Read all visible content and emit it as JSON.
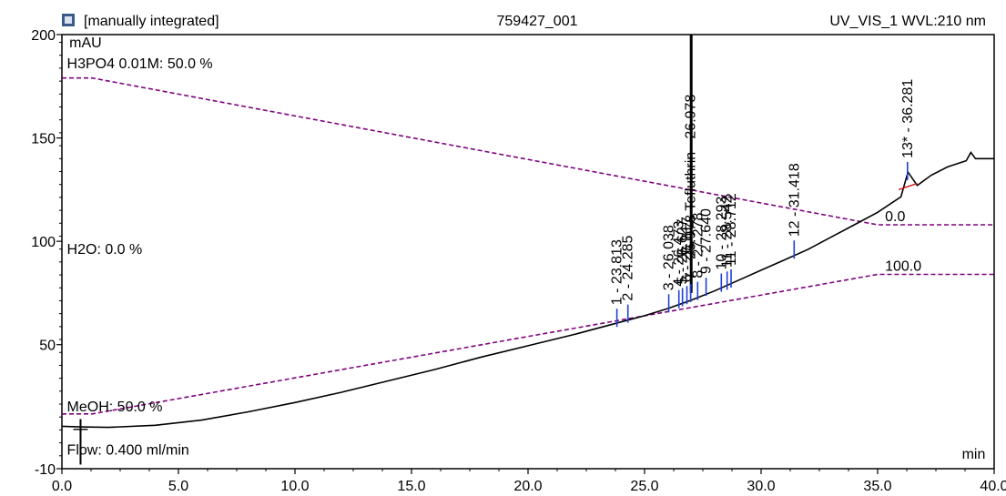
{
  "header": {
    "integration_label": "[manually integrated]",
    "sample_name": "759427_001",
    "channel": "UV_VIS_1 WVL:210 nm"
  },
  "chart_data": {
    "type": "line",
    "xlabel": "min",
    "ylabel": "mAU",
    "xlim": [
      0,
      40
    ],
    "ylim": [
      -10,
      200
    ],
    "x_ticks": [
      {
        "value": 0,
        "label": "0.0"
      },
      {
        "value": 5,
        "label": "5.0"
      },
      {
        "value": 10,
        "label": "10.0"
      },
      {
        "value": 15,
        "label": "15.0"
      },
      {
        "value": 20,
        "label": "20.0"
      },
      {
        "value": 25,
        "label": "25.0"
      },
      {
        "value": 30,
        "label": "30.0"
      },
      {
        "value": 35,
        "label": "35.0"
      },
      {
        "value": 40,
        "label": "40.0"
      }
    ],
    "y_ticks": [
      {
        "value": -10,
        "label": "-10"
      },
      {
        "value": 50,
        "label": "50"
      },
      {
        "value": 100,
        "label": "100"
      },
      {
        "value": 150,
        "label": "150"
      },
      {
        "value": 200,
        "label": "200"
      }
    ],
    "series": [
      {
        "role": "chromatogram",
        "color": "#000000",
        "points": [
          [
            0,
            10.5
          ],
          [
            0.8,
            10.2
          ],
          [
            2,
            10.0
          ],
          [
            4,
            11.0
          ],
          [
            6,
            13.5
          ],
          [
            8,
            17.5
          ],
          [
            10,
            22.0
          ],
          [
            12,
            27.0
          ],
          [
            14,
            32.5
          ],
          [
            16,
            38.0
          ],
          [
            18,
            44.0
          ],
          [
            20,
            49.5
          ],
          [
            22,
            55.0
          ],
          [
            24,
            61.0
          ],
          [
            25,
            64.0
          ],
          [
            26,
            67.5
          ],
          [
            27,
            71.5
          ],
          [
            28,
            76.0
          ],
          [
            29,
            81.0
          ],
          [
            30,
            86.0
          ],
          [
            31,
            91.0
          ],
          [
            32,
            96.0
          ],
          [
            33,
            102.0
          ],
          [
            34,
            108.0
          ],
          [
            35,
            114.0
          ],
          [
            36,
            121.5
          ],
          [
            36.3,
            133.5
          ],
          [
            36.7,
            127.0
          ],
          [
            37.3,
            132.0
          ],
          [
            38,
            136.0
          ],
          [
            38.8,
            139.0
          ],
          [
            39,
            143.0
          ],
          [
            39.2,
            140.0
          ],
          [
            40,
            140.0
          ]
        ]
      },
      {
        "role": "gradient-h3po4",
        "color": "#800080",
        "dashed": true,
        "points": [
          [
            0,
            179
          ],
          [
            1.3,
            179
          ],
          [
            35,
            108
          ],
          [
            40,
            108
          ]
        ]
      },
      {
        "role": "gradient-meoh",
        "color": "#800080",
        "dashed": true,
        "points": [
          [
            0,
            16.5
          ],
          [
            1.3,
            16.5
          ],
          [
            35,
            84
          ],
          [
            40,
            84
          ]
        ]
      }
    ],
    "spike": {
      "x": 27.0,
      "y_top": 200
    },
    "injection_marker_x": 0.8,
    "peaks": [
      {
        "label": "1 - 23.813",
        "rt": 23.813,
        "y": 63
      },
      {
        "label": "2 - 24.285",
        "rt": 24.285,
        "y": 65
      },
      {
        "label": "3 - 26.038",
        "rt": 26.038,
        "y": 70
      },
      {
        "label": "4 - 26.473",
        "rt": 26.473,
        "y": 72
      },
      {
        "label": "5 - 26.627",
        "rt": 26.627,
        "y": 73
      },
      {
        "label": "6 - 26.817",
        "rt": 26.817,
        "y": 74
      },
      {
        "label": "7 - 26.978 Tefluthrin - 26.978",
        "rt": 26.978,
        "y": 75
      },
      {
        "label": "8 - 27.278",
        "rt": 27.278,
        "y": 76
      },
      {
        "label": "9 - 27.640",
        "rt": 27.64,
        "y": 78
      },
      {
        "label": "10 - 28.293",
        "rt": 28.293,
        "y": 80
      },
      {
        "label": "11 - 28.542",
        "rt": 28.542,
        "y": 81
      },
      {
        "label": "11 - 28.712",
        "rt": 28.712,
        "y": 82
      },
      {
        "label": "12 - 31.418",
        "rt": 31.418,
        "y": 96
      },
      {
        "label": "13* - 36.281",
        "rt": 36.281,
        "y": 134
      }
    ],
    "annotations": [
      {
        "text": "mAU",
        "x": 0.2,
        "y": 196
      },
      {
        "text": "H3PO4 0.01M: 50.0 %",
        "x": 0.1,
        "y": 186
      },
      {
        "text": "H2O: 0.0 %",
        "x": 0.1,
        "y": 96
      },
      {
        "text": "MeOH: 50.0 %",
        "x": 0.1,
        "y": 20
      },
      {
        "text": "Flow: 0.400 ml/min",
        "x": 0.1,
        "y": -1
      },
      {
        "text": "0.0",
        "x": 35.2,
        "y": 112
      },
      {
        "text": "100.0",
        "x": 35.2,
        "y": 88
      },
      {
        "text": "min",
        "x": 38.5,
        "y": -3
      }
    ]
  }
}
